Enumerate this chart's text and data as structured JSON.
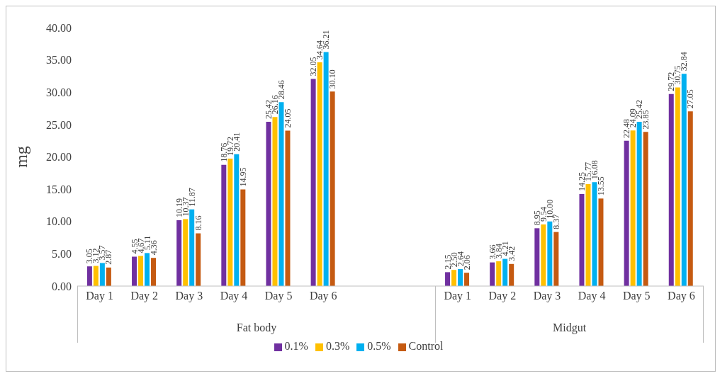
{
  "chart_data": {
    "type": "bar",
    "ylabel": "mg",
    "categories": [
      "Day 1",
      "Day 2",
      "Day 3",
      "Day 4",
      "Day 5",
      "Day 6",
      null,
      null,
      "Day 1",
      "Day 2",
      "Day 3",
      "Day 4",
      "Day 5",
      "Day 6"
    ],
    "series": [
      {
        "name": "0.1%",
        "color": "#7030a0",
        "values": [
          3.05,
          4.55,
          10.19,
          18.76,
          25.42,
          32.05,
          null,
          null,
          2.15,
          3.66,
          8.95,
          14.25,
          22.48,
          29.72
        ],
        "value_labels": [
          "3.05",
          "4.55",
          "10.19",
          "18.76",
          "25.42",
          "32.05",
          null,
          null,
          "2.15",
          "3.66",
          "8.95",
          "14.25",
          "22.48",
          "29.72"
        ]
      },
      {
        "name": "0.3%",
        "color": "#ffc000",
        "values": [
          3.12,
          4.67,
          10.37,
          19.72,
          26.16,
          34.64,
          null,
          null,
          2.5,
          3.84,
          9.54,
          15.77,
          24.09,
          30.75
        ],
        "value_labels": [
          "3.12",
          "4.67",
          "10.37",
          "19.72",
          "26.16",
          "34.64",
          null,
          null,
          "2.50",
          "3.84",
          "9.54",
          "15.77",
          "24.09",
          "30.75"
        ]
      },
      {
        "name": "0.5%",
        "color": "#00b0f0",
        "values": [
          3.57,
          5.11,
          11.87,
          20.41,
          28.46,
          36.21,
          null,
          null,
          2.64,
          4.21,
          10,
          16.08,
          25.42,
          32.84
        ],
        "value_labels": [
          "3.57",
          "5.11",
          "11.87",
          "20.41",
          "28.46",
          "36.21",
          null,
          null,
          "2.64",
          "4.21",
          "10.00",
          "16.08",
          "25.42",
          "32.84"
        ]
      },
      {
        "name": "Control",
        "color": "#c55a11",
        "values": [
          2.87,
          4.36,
          8.16,
          14.95,
          24.05,
          30.1,
          null,
          null,
          2.06,
          3.42,
          8.37,
          13.55,
          23.85,
          27.05
        ],
        "value_labels": [
          "2.87",
          "4.36",
          "8.16",
          "14.95",
          "24.05",
          "30.10",
          null,
          null,
          "2.06",
          "3.42",
          "8.37",
          "13.55",
          "23.85",
          "27.05"
        ]
      }
    ],
    "ylim": [
      0,
      40
    ],
    "yticks": [
      {
        "value": 0,
        "label": "0.00"
      },
      {
        "value": 5,
        "label": "5.00"
      },
      {
        "value": 10,
        "label": "10.00"
      },
      {
        "value": 15,
        "label": "15.00"
      },
      {
        "value": 20,
        "label": "20.00"
      },
      {
        "value": 25,
        "label": "25.00"
      },
      {
        "value": 30,
        "label": "30.00"
      },
      {
        "value": 35,
        "label": "35.00"
      },
      {
        "value": 40,
        "label": "40.00"
      }
    ],
    "annotations": [
      "Fat body",
      "Midgut"
    ],
    "grid": false,
    "legend": "bottom"
  }
}
